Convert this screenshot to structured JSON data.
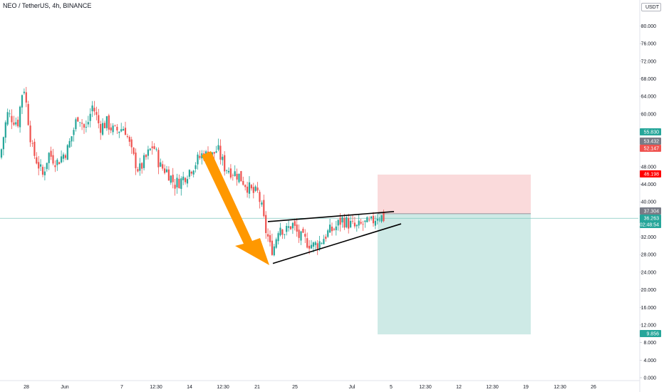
{
  "header": {
    "symbol_title": "NEO / TetherUS, 4h, BINANCE",
    "currency_unit": "USDT"
  },
  "colors": {
    "up": "#26a69a",
    "down": "#ef5350",
    "arrow": "#ff9800",
    "stop_zone": "#f7c1c3",
    "target_zone": "#bde3de",
    "last_price_line": "#7fc8bf"
  },
  "chart_data": {
    "type": "candlestick",
    "y_axis": {
      "range": [
        0,
        84
      ],
      "ticks": [
        "0.000",
        "4.000",
        "8.000",
        "12.000",
        "16.000",
        "20.000",
        "24.000",
        "28.000",
        "32.000",
        "36.000",
        "40.000",
        "44.000",
        "48.000",
        "52.000",
        "56.000",
        "60.000",
        "64.000",
        "68.000",
        "72.000",
        "76.000",
        "80.000"
      ]
    },
    "x_axis": {
      "ticks": [
        "28",
        "Jun",
        "7",
        "12:30",
        "14",
        "12:30",
        "21",
        "25",
        "Jul",
        "5",
        "12:30",
        "12",
        "12:30",
        "19",
        "12:30",
        "26"
      ]
    },
    "price_badges": [
      {
        "label": "55.830",
        "value": 55.83,
        "color": "#26a69a"
      },
      {
        "label": "53.432",
        "value": 53.43,
        "color": "#787b86"
      },
      {
        "label": "52.147",
        "value": 52.15,
        "color": "#ef5350"
      },
      {
        "label": "46.198",
        "value": 46.2,
        "color": "#ff0000"
      },
      {
        "label": "37.304",
        "value": 37.3,
        "color": "#787b86"
      },
      {
        "label": "36.263",
        "value": 36.26,
        "color": "#26a69a"
      },
      {
        "label": "02:48:54",
        "value": 35.3,
        "color": "#26a69a"
      },
      {
        "label": "9.856",
        "value": 9.86,
        "color": "#26a69a"
      }
    ],
    "last_price": 36.26,
    "position": {
      "entry": 37.3,
      "stop": 46.2,
      "target": 9.86
    },
    "rising_wedge": {
      "upper": [
        [
          0,
          35.5
        ],
        [
          1,
          37.8
        ]
      ],
      "lower": [
        [
          0,
          26.0
        ],
        [
          1,
          35.0
        ]
      ]
    },
    "waypoints": [
      [
        0,
        50
      ],
      [
        10,
        60
      ],
      [
        25,
        58
      ],
      [
        33,
        67
      ],
      [
        45,
        52
      ],
      [
        60,
        46
      ],
      [
        68,
        51
      ],
      [
        80,
        49
      ],
      [
        95,
        52
      ],
      [
        110,
        60
      ],
      [
        120,
        56
      ],
      [
        130,
        62
      ],
      [
        140,
        57
      ],
      [
        150,
        58
      ],
      [
        160,
        56
      ],
      [
        175,
        57
      ],
      [
        185,
        51
      ],
      [
        195,
        47
      ],
      [
        205,
        50
      ],
      [
        215,
        53
      ],
      [
        225,
        48
      ],
      [
        235,
        47
      ],
      [
        245,
        44
      ],
      [
        255,
        45
      ],
      [
        265,
        47
      ],
      [
        275,
        49
      ],
      [
        285,
        51
      ],
      [
        295,
        50
      ],
      [
        305,
        52
      ],
      [
        315,
        48
      ],
      [
        325,
        47
      ],
      [
        335,
        46
      ],
      [
        345,
        44
      ],
      [
        355,
        42
      ],
      [
        362,
        42
      ],
      [
        368,
        38
      ],
      [
        372,
        34
      ],
      [
        376,
        32
      ],
      [
        380,
        29
      ],
      [
        385,
        30
      ],
      [
        392,
        35
      ],
      [
        400,
        33
      ],
      [
        410,
        35
      ],
      [
        420,
        32
      ],
      [
        430,
        31
      ],
      [
        440,
        30
      ],
      [
        450,
        31
      ],
      [
        460,
        33
      ],
      [
        470,
        34
      ],
      [
        480,
        36
      ],
      [
        490,
        35
      ],
      [
        500,
        34
      ],
      [
        510,
        35
      ],
      [
        520,
        35
      ],
      [
        530,
        37
      ],
      [
        540,
        36.26
      ]
    ]
  }
}
